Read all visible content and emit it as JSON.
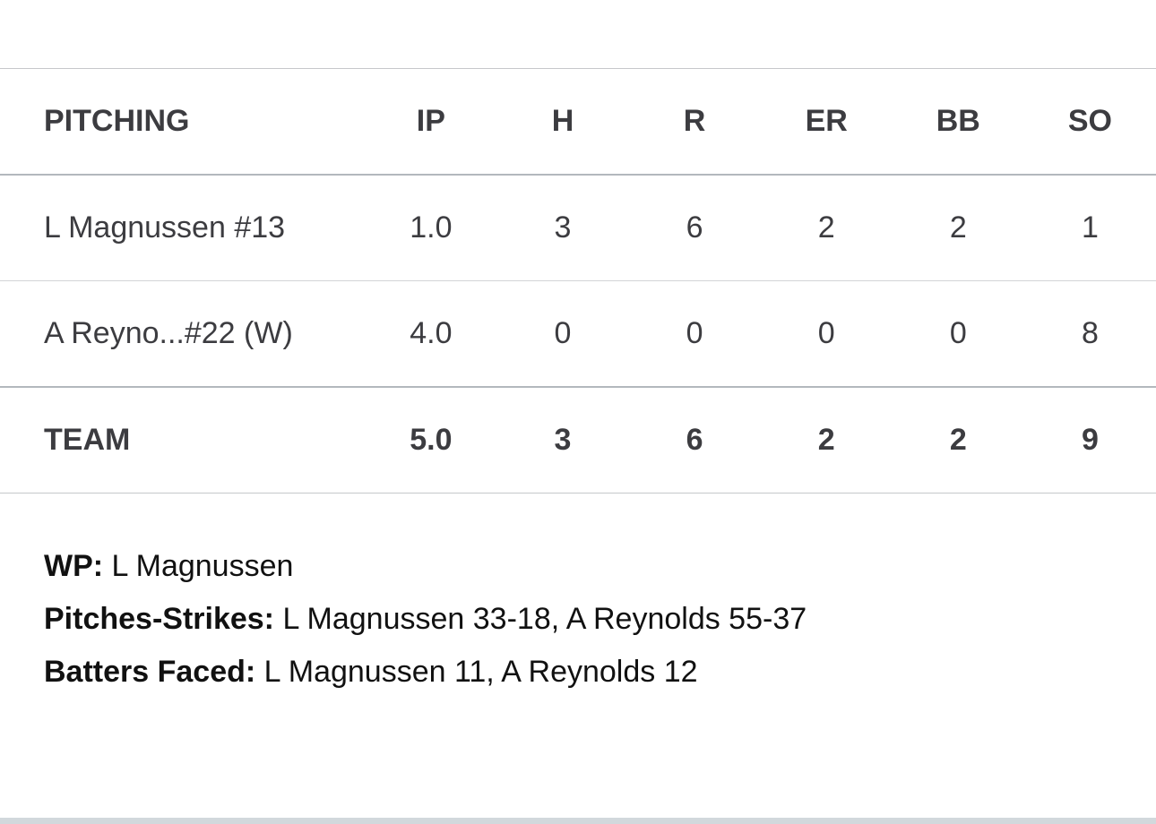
{
  "headers": [
    "PITCHING",
    "IP",
    "H",
    "R",
    "ER",
    "BB",
    "SO"
  ],
  "rows": [
    [
      "L Magnussen #13",
      "1.0",
      "3",
      "6",
      "2",
      "2",
      "1"
    ],
    [
      "A Reyno...#22 (W)",
      "4.0",
      "0",
      "0",
      "0",
      "0",
      "8"
    ]
  ],
  "team": [
    "TEAM",
    "5.0",
    "3",
    "6",
    "2",
    "2",
    "9"
  ],
  "notes": [
    {
      "label": "WP:",
      "value": " L Magnussen"
    },
    {
      "label": "Pitches-Strikes:",
      "value": " L Magnussen 33-18, A Reynolds 55-37"
    },
    {
      "label": "Batters Faced:",
      "value": " L Magnussen 11, A Reynolds 12"
    }
  ]
}
